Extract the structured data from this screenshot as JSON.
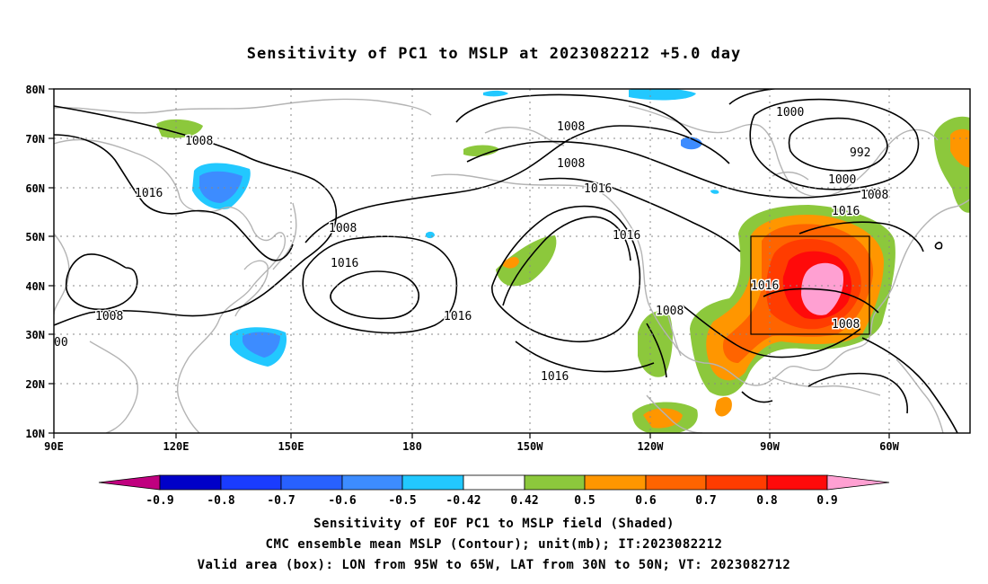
{
  "title": "Sensitivity of PC1 to MSLP at 2023082212 +5.0 day",
  "map": {
    "lat_labels": [
      "80N",
      "70N",
      "60N",
      "50N",
      "40N",
      "30N",
      "20N",
      "10N"
    ],
    "lon_labels": [
      "90E",
      "120E",
      "150E",
      "180",
      "150W",
      "120W",
      "90W",
      "60W"
    ],
    "box": {
      "lon_w": -95,
      "lon_e": -65,
      "lat_s": 30,
      "lat_n": 50
    },
    "contour_labels": [
      "1008",
      "1008",
      "1016",
      "1008",
      "1016",
      "1008",
      "1016",
      "1008",
      "1016",
      "1016",
      "1016",
      "1008",
      "1016",
      "1000",
      "992",
      "1000",
      "1008",
      "1016",
      "1016",
      "1008",
      "00"
    ]
  },
  "colorbar": {
    "labels": [
      "-0.9",
      "-0.8",
      "-0.7",
      "-0.6",
      "-0.5",
      "-0.42",
      "0.42",
      "0.5",
      "0.6",
      "0.7",
      "0.8",
      "0.9"
    ],
    "colors": [
      "#c0007f",
      "#0000c8",
      "#1a3cff",
      "#2861ff",
      "#3d8cff",
      "#22c8ff",
      "#ffffff",
      "#8cc83c",
      "#ff9600",
      "#ff6400",
      "#ff3c00",
      "#ff0a0a",
      "#ffa0d2"
    ]
  },
  "captions": [
    "Sensitivity of EOF PC1 to MSLP field (Shaded)",
    "CMC ensemble mean MSLP (Contour); unit(mb); IT:2023082212",
    "Valid area (box): LON from 95W to 65W, LAT from 30N to 50N; VT: 2023082712"
  ]
}
